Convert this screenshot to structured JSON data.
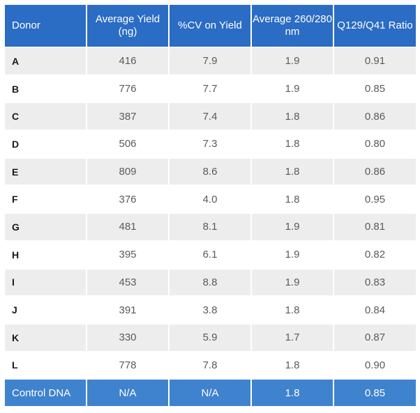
{
  "table": {
    "headers": [
      "Donor",
      "Average Yield (ng)",
      "%CV on Yield",
      "Average 260/280 nm",
      "Q129/Q41 Ratio"
    ],
    "rows": [
      {
        "donor": "A",
        "yield": "416",
        "cv": "7.9",
        "ratio_260_280": "1.9",
        "q_ratio": "0.91"
      },
      {
        "donor": "B",
        "yield": "776",
        "cv": "7.7",
        "ratio_260_280": "1.9",
        "q_ratio": "0.85"
      },
      {
        "donor": "C",
        "yield": "387",
        "cv": "7.4",
        "ratio_260_280": "1.8",
        "q_ratio": "0.86"
      },
      {
        "donor": "D",
        "yield": "506",
        "cv": "7.3",
        "ratio_260_280": "1.8",
        "q_ratio": "0.80"
      },
      {
        "donor": "E",
        "yield": "809",
        "cv": "8.6",
        "ratio_260_280": "1.8",
        "q_ratio": "0.86"
      },
      {
        "donor": "F",
        "yield": "376",
        "cv": "4.0",
        "ratio_260_280": "1.8",
        "q_ratio": "0.95"
      },
      {
        "donor": "G",
        "yield": "481",
        "cv": "8.1",
        "ratio_260_280": "1.9",
        "q_ratio": "0.81"
      },
      {
        "donor": "H",
        "yield": "395",
        "cv": "6.1",
        "ratio_260_280": "1.9",
        "q_ratio": "0.82"
      },
      {
        "donor": "I",
        "yield": "453",
        "cv": "8.8",
        "ratio_260_280": "1.9",
        "q_ratio": "0.83"
      },
      {
        "donor": "J",
        "yield": "391",
        "cv": "3.8",
        "ratio_260_280": "1.8",
        "q_ratio": "0.84"
      },
      {
        "donor": "K",
        "yield": "330",
        "cv": "5.9",
        "ratio_260_280": "1.7",
        "q_ratio": "0.87"
      },
      {
        "donor": "L",
        "yield": "778",
        "cv": "7.8",
        "ratio_260_280": "1.8",
        "q_ratio": "0.90"
      }
    ],
    "control": {
      "donor": "Control DNA",
      "yield": "N/A",
      "cv": "N/A",
      "ratio_260_280": "1.8",
      "q_ratio": "0.85"
    }
  },
  "colors": {
    "header_bg": "#2b6cc4",
    "control_bg": "#3f82cd",
    "stripe_bg": "#ededed"
  }
}
